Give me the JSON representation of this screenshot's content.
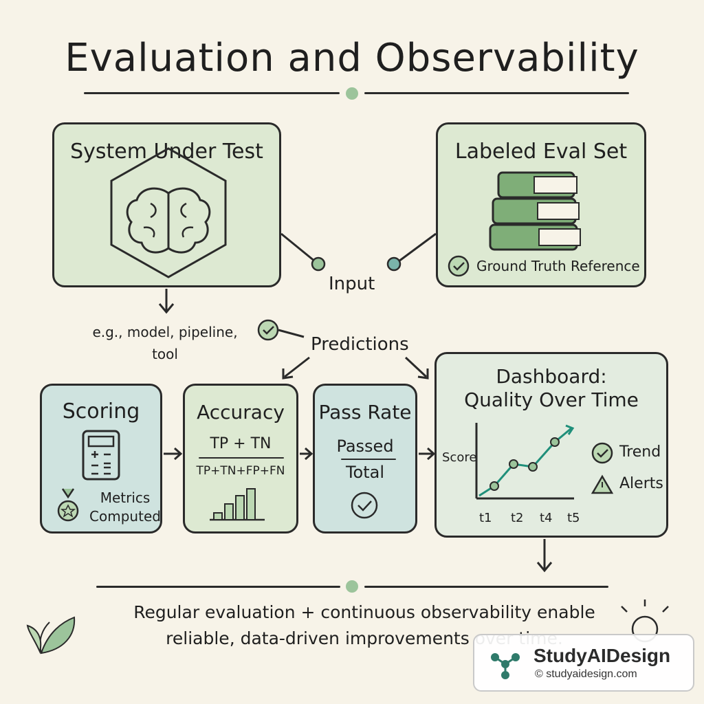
{
  "header": {
    "title": "Evaluation and Observability"
  },
  "system_box": {
    "title": "System Under Test",
    "examples": [
      "e.g., model, pipeline,",
      "tool"
    ]
  },
  "eval_set_box": {
    "title": "Labeled Eval Set",
    "ground_truth": "Ground Truth Reference"
  },
  "flow": {
    "input_label": "Input",
    "predictions_label": "Predictions"
  },
  "scoring_box": {
    "title": "Scoring",
    "metrics_line1": "Metrics",
    "metrics_line2": "Computed"
  },
  "accuracy_box": {
    "title": "Accuracy",
    "numerator": "TP + TN",
    "denominator": "TP+TN+FP+FN"
  },
  "pass_rate_box": {
    "title": "Pass Rate",
    "numerator": "Passed",
    "denominator": "Total"
  },
  "dashboard_box": {
    "title_line1": "Dashboard:",
    "title_line2": "Quality Over Time",
    "y_label": "Score",
    "x_ticks": [
      "t1",
      "t2",
      "t4",
      "t5"
    ],
    "trend_label": "Trend",
    "alerts_label": "Alerts"
  },
  "footer": {
    "line1": "Regular evaluation + continuous observability enable",
    "line2": "reliable, data-driven improvements over time."
  },
  "watermark": {
    "brand": "StudyAIDesign",
    "url": "© studyaidesign.com"
  },
  "colors": {
    "background": "#f7f3e8",
    "green_box": "#dde9d2",
    "teal_box": "#cfe3df",
    "accent": "#9cc49b",
    "trend_line": "#1f8f7a"
  }
}
